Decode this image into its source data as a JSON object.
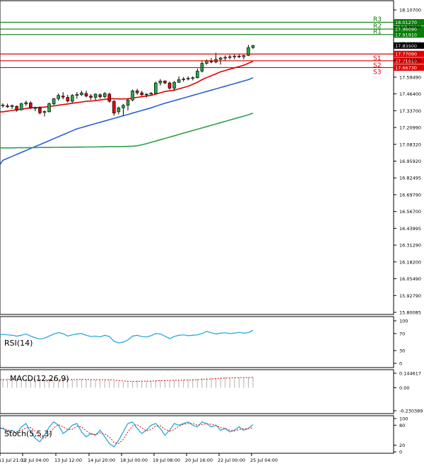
{
  "chart_data": {
    "type": "candlestick",
    "price_axis": {
      "ticks": [
        "18.10700",
        "17.96090",
        "17.83500",
        "17.70850",
        "17.59490",
        "17.46400",
        "17.33700",
        "17.20990",
        "17.08320",
        "16.95920",
        "16.82495",
        "16.69790",
        "16.56700",
        "16.43995",
        "16.31290",
        "16.18200",
        "16.05490",
        "15.92790",
        "15.80085"
      ],
      "range": [
        15.80085,
        18.107
      ]
    },
    "levels": [
      {
        "label": "R3",
        "value": 18.0127,
        "value_text": "18.01270",
        "color": "#0a7d0a"
      },
      {
        "label": "R2",
        "value": 17.9609,
        "value_text": "17.96090",
        "color": "#0a7d0a"
      },
      {
        "label": "R1",
        "value": 17.9191,
        "value_text": "17.91910",
        "color": "#0a7d0a"
      },
      {
        "label": "S1",
        "value": 17.7709,
        "value_text": "17.77090",
        "color": "#e00000"
      },
      {
        "label": "S2",
        "value": 17.7191,
        "value_text": "17.71910",
        "color": "#e00000"
      },
      {
        "label": "S3",
        "value": 17.6673,
        "value_text": "17.66730",
        "color": "#e00000"
      }
    ],
    "current_price": {
      "value": 17.835,
      "text": "17.83500"
    },
    "x_axis_labels": [
      "11 Jul 21:01",
      "12 Jul 04:00",
      "13 Jul 12:00",
      "14 Jul 20:00",
      "18 Jul 00:00",
      "19 Jul 08:00",
      "20 Jul 16:00",
      "22 Jul 00:00",
      "25 Jul 04:00"
    ],
    "candles_ohlc": [
      [
        17.38,
        17.395,
        17.36,
        17.382
      ],
      [
        17.375,
        17.392,
        17.36,
        17.368
      ],
      [
        17.37,
        17.385,
        17.352,
        17.378
      ],
      [
        17.372,
        17.378,
        17.33,
        17.342
      ],
      [
        17.345,
        17.4,
        17.34,
        17.392
      ],
      [
        17.39,
        17.415,
        17.375,
        17.4
      ],
      [
        17.398,
        17.41,
        17.35,
        17.358
      ],
      [
        17.355,
        17.37,
        17.335,
        17.362
      ],
      [
        17.36,
        17.37,
        17.31,
        17.322
      ],
      [
        17.325,
        17.34,
        17.295,
        17.332
      ],
      [
        17.33,
        17.4,
        17.325,
        17.392
      ],
      [
        17.39,
        17.435,
        17.38,
        17.43
      ],
      [
        17.43,
        17.47,
        17.415,
        17.455
      ],
      [
        17.45,
        17.48,
        17.425,
        17.442
      ],
      [
        17.44,
        17.46,
        17.4,
        17.412
      ],
      [
        17.41,
        17.465,
        17.4,
        17.455
      ],
      [
        17.455,
        17.48,
        17.43,
        17.462
      ],
      [
        17.46,
        17.49,
        17.45,
        17.475
      ],
      [
        17.47,
        17.49,
        17.44,
        17.45
      ],
      [
        17.45,
        17.465,
        17.42,
        17.44
      ],
      [
        17.44,
        17.47,
        17.42,
        17.465
      ],
      [
        17.46,
        17.47,
        17.43,
        17.445
      ],
      [
        17.445,
        17.48,
        17.435,
        17.47
      ],
      [
        17.465,
        17.475,
        17.4,
        17.41
      ],
      [
        17.41,
        17.42,
        17.3,
        17.32
      ],
      [
        17.33,
        17.37,
        17.31,
        17.36
      ],
      [
        17.36,
        17.39,
        17.3,
        17.38
      ],
      [
        17.38,
        17.43,
        17.34,
        17.42
      ],
      [
        17.42,
        17.5,
        17.41,
        17.49
      ],
      [
        17.49,
        17.505,
        17.46,
        17.475
      ],
      [
        17.475,
        17.49,
        17.45,
        17.46
      ],
      [
        17.46,
        17.47,
        17.44,
        17.465
      ],
      [
        17.465,
        17.48,
        17.46,
        17.472
      ],
      [
        17.47,
        17.56,
        17.465,
        17.55
      ],
      [
        17.55,
        17.58,
        17.53,
        17.565
      ],
      [
        17.565,
        17.57,
        17.54,
        17.55
      ],
      [
        17.55,
        17.56,
        17.5,
        17.51
      ],
      [
        17.51,
        17.565,
        17.49,
        17.555
      ],
      [
        17.555,
        17.6,
        17.55,
        17.575
      ],
      [
        17.575,
        17.595,
        17.56,
        17.58
      ],
      [
        17.58,
        17.6,
        17.57,
        17.585
      ],
      [
        17.585,
        17.6,
        17.57,
        17.59
      ],
      [
        17.59,
        17.66,
        17.585,
        17.64
      ],
      [
        17.64,
        17.72,
        17.63,
        17.7
      ],
      [
        17.7,
        17.73,
        17.69,
        17.72
      ],
      [
        17.72,
        17.74,
        17.7,
        17.71
      ],
      [
        17.71,
        17.78,
        17.7,
        17.73
      ],
      [
        17.73,
        17.75,
        17.69,
        17.74
      ],
      [
        17.74,
        17.76,
        17.72,
        17.745
      ],
      [
        17.745,
        17.765,
        17.73,
        17.75
      ],
      [
        17.75,
        17.77,
        17.73,
        17.755
      ],
      [
        17.755,
        17.77,
        17.74,
        17.75
      ],
      [
        17.75,
        17.765,
        17.73,
        17.76
      ],
      [
        17.76,
        17.84,
        17.755,
        17.82
      ],
      [
        17.82,
        17.84,
        17.81,
        17.835
      ]
    ],
    "moving_averages": [
      {
        "color": "#e00000",
        "values": [
          17.33,
          17.335,
          17.34,
          17.345,
          17.35,
          17.355,
          17.36,
          17.362,
          17.364,
          17.366,
          17.37,
          17.375,
          17.38,
          17.385,
          17.39,
          17.395,
          17.4,
          17.405,
          17.41,
          17.412,
          17.415,
          17.42,
          17.425,
          17.43,
          17.43,
          17.428,
          17.428,
          17.43,
          17.435,
          17.44,
          17.445,
          17.45,
          17.455,
          17.465,
          17.475,
          17.485,
          17.49,
          17.495,
          17.505,
          17.515,
          17.525,
          17.54,
          17.555,
          17.575,
          17.59,
          17.605,
          17.62,
          17.635,
          17.645,
          17.655,
          17.665,
          17.675,
          17.685,
          17.7,
          17.715
        ]
      },
      {
        "color": "#2d5fd3",
        "values": [
          16.96,
          16.975,
          16.99,
          17.005,
          17.02,
          17.035,
          17.05,
          17.065,
          17.08,
          17.095,
          17.11,
          17.125,
          17.14,
          17.155,
          17.17,
          17.185,
          17.2,
          17.21,
          17.22,
          17.23,
          17.24,
          17.25,
          17.26,
          17.27,
          17.28,
          17.29,
          17.3,
          17.31,
          17.32,
          17.33,
          17.34,
          17.35,
          17.36,
          17.372,
          17.384,
          17.395,
          17.405,
          17.415,
          17.425,
          17.435,
          17.445,
          17.455,
          17.465,
          17.475,
          17.485,
          17.495,
          17.505,
          17.515,
          17.525,
          17.535,
          17.545,
          17.555,
          17.565,
          17.575,
          17.59
        ]
      },
      {
        "color": "#2ea04a",
        "values": [
          17.055,
          17.055,
          17.055,
          17.056,
          17.056,
          17.056,
          17.057,
          17.057,
          17.058,
          17.058,
          17.058,
          17.059,
          17.059,
          17.06,
          17.06,
          17.06,
          17.061,
          17.061,
          17.062,
          17.062,
          17.062,
          17.063,
          17.063,
          17.064,
          17.064,
          17.064,
          17.065,
          17.066,
          17.068,
          17.071,
          17.078,
          17.087,
          17.097,
          17.107,
          17.117,
          17.127,
          17.137,
          17.147,
          17.157,
          17.167,
          17.177,
          17.187,
          17.197,
          17.207,
          17.217,
          17.227,
          17.237,
          17.247,
          17.257,
          17.267,
          17.277,
          17.287,
          17.297,
          17.307,
          17.32
        ]
      }
    ],
    "rsi": {
      "label": "RSI(14)",
      "ticks": [
        "100",
        "70",
        "30",
        "0"
      ],
      "values": [
        68,
        67,
        66,
        64,
        66,
        69,
        64,
        60,
        57,
        59,
        64,
        69,
        72,
        70,
        64,
        67,
        69,
        70,
        66,
        63,
        64,
        62,
        66,
        63,
        52,
        48,
        50,
        55,
        64,
        66,
        63,
        62,
        65,
        70,
        69,
        64,
        58,
        63,
        66,
        67,
        65,
        66,
        67,
        70,
        75,
        72,
        69,
        71,
        72,
        70,
        71,
        73,
        71,
        72,
        78
      ]
    },
    "macd": {
      "label": "MACD(12,26,9)",
      "ticks": [
        "0.144617",
        "0.00",
        "-0.230389"
      ],
      "histogram": [
        0.09,
        0.09,
        0.088,
        0.085,
        0.085,
        0.086,
        0.084,
        0.08,
        0.076,
        0.074,
        0.076,
        0.08,
        0.085,
        0.088,
        0.086,
        0.086,
        0.087,
        0.088,
        0.086,
        0.083,
        0.082,
        0.08,
        0.081,
        0.078,
        0.066,
        0.058,
        0.056,
        0.059,
        0.066,
        0.07,
        0.069,
        0.068,
        0.069,
        0.075,
        0.08,
        0.08,
        0.075,
        0.076,
        0.079,
        0.082,
        0.083,
        0.084,
        0.087,
        0.094,
        0.1,
        0.102,
        0.103,
        0.104,
        0.104,
        0.103,
        0.102,
        0.102,
        0.101,
        0.104,
        0.108
      ],
      "signal": [
        0.08,
        0.081,
        0.082,
        0.083,
        0.083,
        0.083,
        0.082,
        0.081,
        0.08,
        0.079,
        0.078,
        0.078,
        0.079,
        0.08,
        0.081,
        0.081,
        0.082,
        0.082,
        0.082,
        0.081,
        0.081,
        0.08,
        0.08,
        0.079,
        0.076,
        0.072,
        0.068,
        0.065,
        0.064,
        0.064,
        0.065,
        0.066,
        0.066,
        0.068,
        0.07,
        0.072,
        0.073,
        0.074,
        0.075,
        0.076,
        0.077,
        0.078,
        0.08,
        0.082,
        0.085,
        0.088,
        0.091,
        0.094,
        0.096,
        0.098,
        0.099,
        0.1,
        0.1,
        0.101,
        0.102
      ]
    },
    "stoch": {
      "label": "Stoch(5,5,3)",
      "ticks": [
        "100",
        "80",
        "20",
        "0"
      ],
      "main": [
        70,
        60,
        65,
        55,
        75,
        85,
        60,
        40,
        30,
        50,
        75,
        90,
        80,
        55,
        65,
        80,
        85,
        60,
        45,
        55,
        50,
        65,
        45,
        25,
        15,
        35,
        60,
        85,
        90,
        70,
        55,
        65,
        80,
        85,
        70,
        50,
        65,
        85,
        80,
        85,
        90,
        80,
        75,
        90,
        85,
        75,
        80,
        65,
        70,
        60,
        65,
        75,
        65,
        70,
        82
      ],
      "signal": [
        72,
        66,
        62,
        60,
        65,
        72,
        73,
        62,
        45,
        40,
        52,
        72,
        82,
        75,
        67,
        68,
        77,
        75,
        63,
        53,
        52,
        57,
        53,
        45,
        28,
        25,
        37,
        60,
        78,
        82,
        72,
        63,
        67,
        77,
        78,
        68,
        62,
        67,
        77,
        83,
        85,
        85,
        80,
        82,
        84,
        83,
        80,
        73,
        70,
        65,
        63,
        67,
        69,
        70,
        72
      ]
    }
  }
}
